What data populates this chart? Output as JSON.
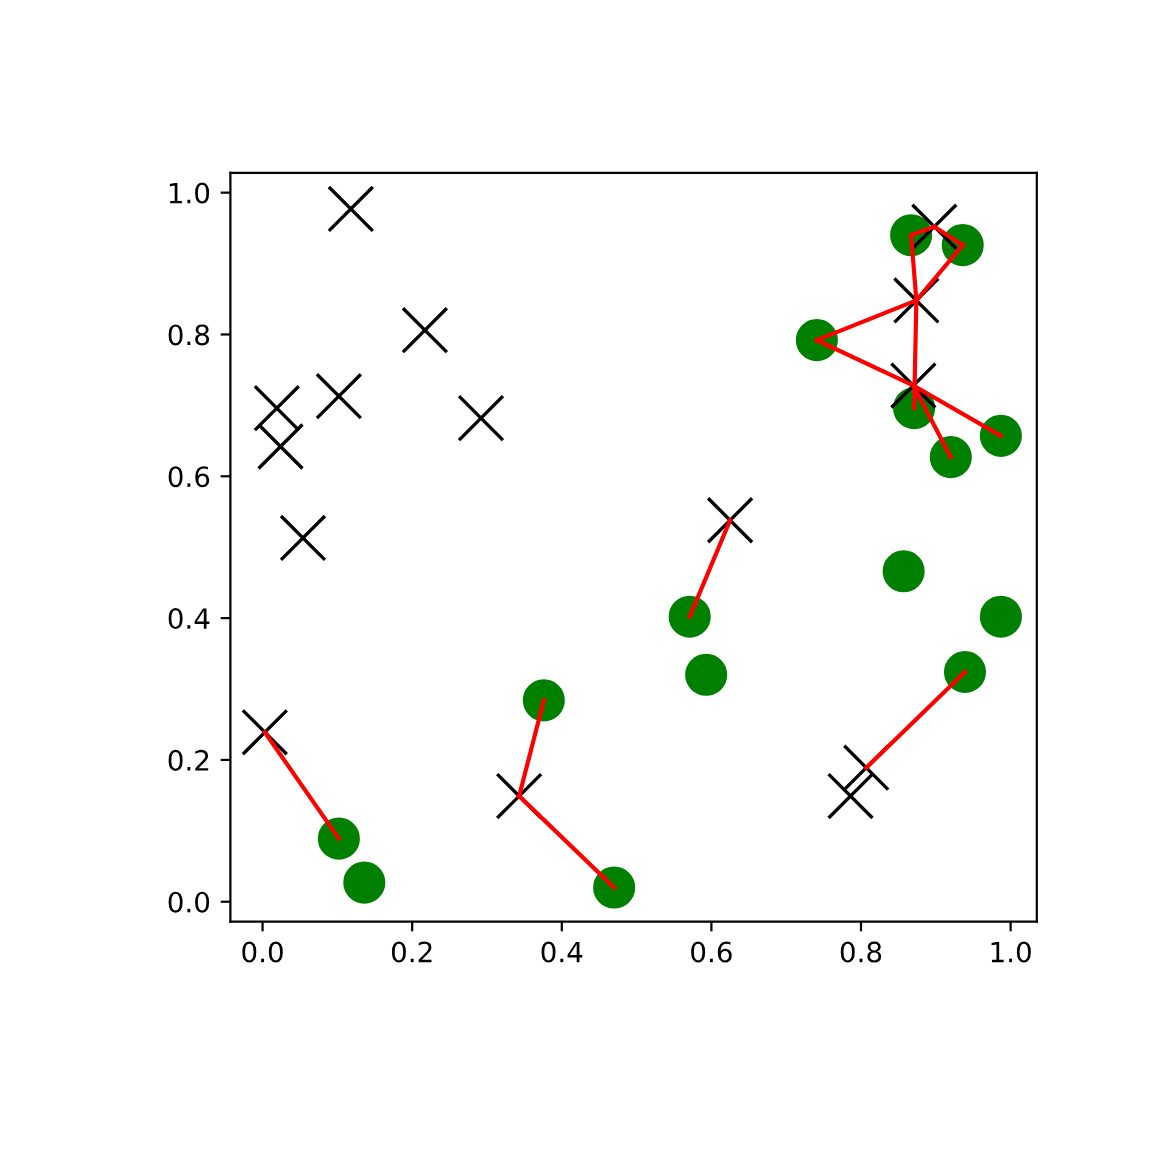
{
  "chart_data": {
    "type": "scatter",
    "xlim": [
      -0.043,
      1.035
    ],
    "ylim": [
      -0.028,
      1.028
    ],
    "xticks": [
      {
        "value": 0,
        "label": "0.0"
      },
      0.2,
      0.4,
      0.6,
      0.8,
      {
        "value": 1,
        "label": "1.0"
      }
    ],
    "yticks": [
      {
        "value": 0,
        "label": "0.0"
      },
      0.2,
      0.4,
      0.6,
      0.8,
      {
        "value": 1,
        "label": "1.0"
      }
    ],
    "grid": false,
    "legend": false,
    "series": [
      {
        "marker": "circle",
        "color": "#008000",
        "x": [
          0.867,
          0.936,
          0.741,
          0.871,
          0.92,
          0.987,
          0.857,
          0.987,
          0.939,
          0.571,
          0.593,
          0.47,
          0.376,
          0.102,
          0.136
        ],
        "values": [
          0.94,
          0.926,
          0.792,
          0.696,
          0.627,
          0.657,
          0.466,
          0.402,
          0.324,
          0.402,
          0.32,
          0.02,
          0.284,
          0.089,
          0.027
        ]
      },
      {
        "marker": "cross",
        "color": "#000000",
        "x": [
          0.118,
          0.217,
          0.019,
          0.024,
          0.102,
          0.292,
          0.054,
          0.003,
          0.343,
          0.625,
          0.807,
          0.786,
          0.898,
          0.874,
          0.87
        ],
        "values": [
          0.977,
          0.806,
          0.696,
          0.642,
          0.713,
          0.682,
          0.513,
          0.239,
          0.149,
          0.538,
          0.189,
          0.149,
          0.952,
          0.848,
          0.728
        ]
      },
      {
        "type": "line",
        "color": "#ff0000",
        "x": [
          0.003,
          0.102
        ],
        "values": [
          0.239,
          0.089
        ]
      },
      {
        "type": "line",
        "color": "#ff0000",
        "x": [
          0.343,
          0.376
        ],
        "values": [
          0.149,
          0.284
        ]
      },
      {
        "type": "line",
        "color": "#ff0000",
        "x": [
          0.343,
          0.47
        ],
        "values": [
          0.149,
          0.02
        ]
      },
      {
        "type": "line",
        "color": "#ff0000",
        "x": [
          0.625,
          0.571
        ],
        "values": [
          0.538,
          0.402
        ]
      },
      {
        "type": "line",
        "color": "#ff0000",
        "x": [
          0.807,
          0.939
        ],
        "values": [
          0.189,
          0.324
        ]
      },
      {
        "type": "line",
        "color": "#ff0000",
        "x": [
          0.867,
          0.898
        ],
        "values": [
          0.94,
          0.952
        ]
      },
      {
        "type": "line",
        "color": "#ff0000",
        "x": [
          0.898,
          0.936
        ],
        "values": [
          0.952,
          0.926
        ]
      },
      {
        "type": "line",
        "color": "#ff0000",
        "x": [
          0.936,
          0.874
        ],
        "values": [
          0.926,
          0.848
        ]
      },
      {
        "type": "line",
        "color": "#ff0000",
        "x": [
          0.867,
          0.874
        ],
        "values": [
          0.94,
          0.848
        ]
      },
      {
        "type": "line",
        "color": "#ff0000",
        "x": [
          0.874,
          0.871
        ],
        "values": [
          0.848,
          0.696
        ]
      },
      {
        "type": "line",
        "color": "#ff0000",
        "x": [
          0.874,
          0.741
        ],
        "values": [
          0.848,
          0.792
        ]
      },
      {
        "type": "line",
        "color": "#ff0000",
        "x": [
          0.741,
          0.87
        ],
        "values": [
          0.792,
          0.728
        ]
      },
      {
        "type": "line",
        "color": "#ff0000",
        "x": [
          0.87,
          0.987
        ],
        "values": [
          0.728,
          0.657
        ]
      },
      {
        "type": "line",
        "color": "#ff0000",
        "x": [
          0.87,
          0.92
        ],
        "values": [
          0.728,
          0.627
        ]
      }
    ]
  }
}
